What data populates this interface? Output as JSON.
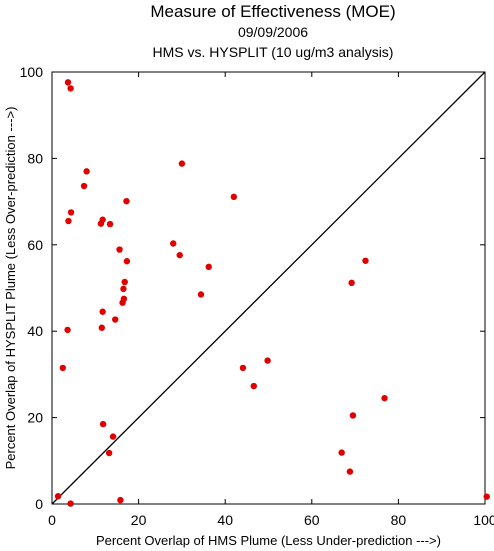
{
  "chart_data": {
    "type": "scatter",
    "title": "Measure of Effectiveness (MOE)",
    "subtitle": "09/09/2006",
    "subtitle2": "HMS vs. HYSPLIT  (10 ug/m3 analysis)",
    "xlabel": "Percent Overlap of HMS Plume (Less Under-prediction --->)",
    "ylabel": "Percent Overlap of HYSPLIT Plume (Less Over-prediction --->)",
    "xlim": [
      0,
      100
    ],
    "ylim": [
      0,
      100
    ],
    "xticks": [
      0,
      20,
      40,
      60,
      80,
      100
    ],
    "yticks": [
      0,
      20,
      40,
      60,
      80,
      100
    ],
    "grid": false,
    "reference_line": "y = x",
    "colors": {
      "points": "#e00000",
      "axes": "#000000"
    },
    "points": [
      {
        "x": 3.7,
        "y": 97.6
      },
      {
        "x": 4.3,
        "y": 96.2
      },
      {
        "x": 8.0,
        "y": 77.0
      },
      {
        "x": 30.0,
        "y": 78.8
      },
      {
        "x": 7.4,
        "y": 73.6
      },
      {
        "x": 42.0,
        "y": 71.1
      },
      {
        "x": 17.2,
        "y": 70.1
      },
      {
        "x": 4.4,
        "y": 67.5
      },
      {
        "x": 3.8,
        "y": 65.5
      },
      {
        "x": 11.7,
        "y": 65.8
      },
      {
        "x": 11.3,
        "y": 64.9
      },
      {
        "x": 13.4,
        "y": 64.8
      },
      {
        "x": 28.0,
        "y": 60.3
      },
      {
        "x": 15.6,
        "y": 58.9
      },
      {
        "x": 29.5,
        "y": 57.6
      },
      {
        "x": 17.3,
        "y": 56.2
      },
      {
        "x": 72.4,
        "y": 56.3
      },
      {
        "x": 36.2,
        "y": 54.9
      },
      {
        "x": 16.8,
        "y": 51.4
      },
      {
        "x": 69.2,
        "y": 51.2
      },
      {
        "x": 16.5,
        "y": 49.8
      },
      {
        "x": 34.4,
        "y": 48.5
      },
      {
        "x": 16.6,
        "y": 47.5
      },
      {
        "x": 16.3,
        "y": 46.6
      },
      {
        "x": 11.7,
        "y": 44.5
      },
      {
        "x": 14.6,
        "y": 42.7
      },
      {
        "x": 11.5,
        "y": 40.8
      },
      {
        "x": 3.6,
        "y": 40.3
      },
      {
        "x": 49.8,
        "y": 33.2
      },
      {
        "x": 2.5,
        "y": 31.5
      },
      {
        "x": 44.1,
        "y": 31.5
      },
      {
        "x": 46.6,
        "y": 27.3
      },
      {
        "x": 76.8,
        "y": 24.5
      },
      {
        "x": 69.5,
        "y": 20.5
      },
      {
        "x": 11.8,
        "y": 18.5
      },
      {
        "x": 14.1,
        "y": 15.6
      },
      {
        "x": 13.2,
        "y": 11.8
      },
      {
        "x": 66.9,
        "y": 11.9
      },
      {
        "x": 68.8,
        "y": 7.5
      },
      {
        "x": 1.4,
        "y": 1.8
      },
      {
        "x": 15.8,
        "y": 0.9
      },
      {
        "x": 4.3,
        "y": 0.1
      },
      {
        "x": 100.4,
        "y": 1.7
      }
    ]
  }
}
